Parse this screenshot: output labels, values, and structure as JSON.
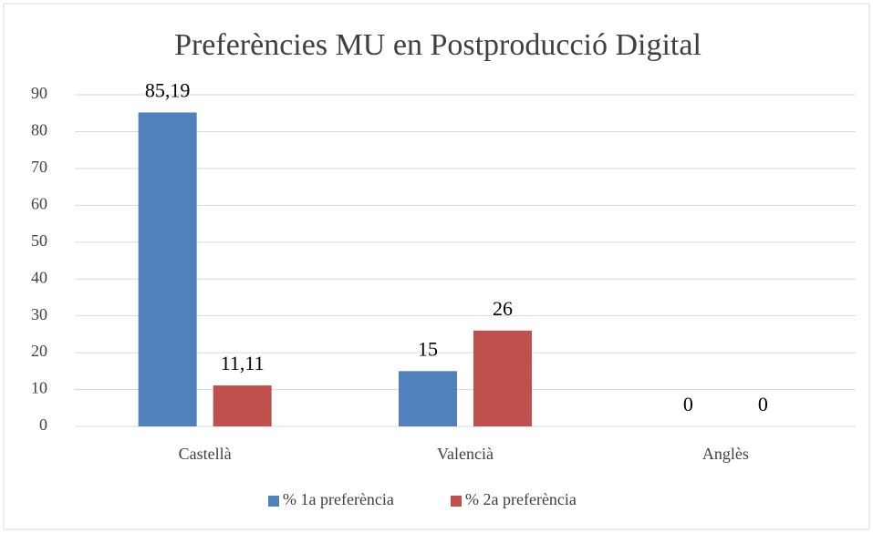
{
  "chart_data": {
    "type": "bar",
    "title": "Preferències MU en Postproducció Digital",
    "categories": [
      "Castellà",
      "Valencià",
      "Anglès"
    ],
    "series": [
      {
        "name": "% 1a preferència",
        "color": "#4f81bd",
        "values": [
          85.19,
          15,
          0
        ],
        "value_labels": [
          "85,19",
          "15",
          "0"
        ]
      },
      {
        "name": "% 2a preferència",
        "color": "#c0504d",
        "values": [
          11.11,
          26,
          0
        ],
        "value_labels": [
          "11,11",
          "26",
          "0"
        ]
      }
    ],
    "ylim": [
      0,
      90
    ],
    "yticks": [
      0,
      10,
      20,
      30,
      40,
      50,
      60,
      70,
      80,
      90
    ],
    "grid": true,
    "legend": "bottom"
  }
}
